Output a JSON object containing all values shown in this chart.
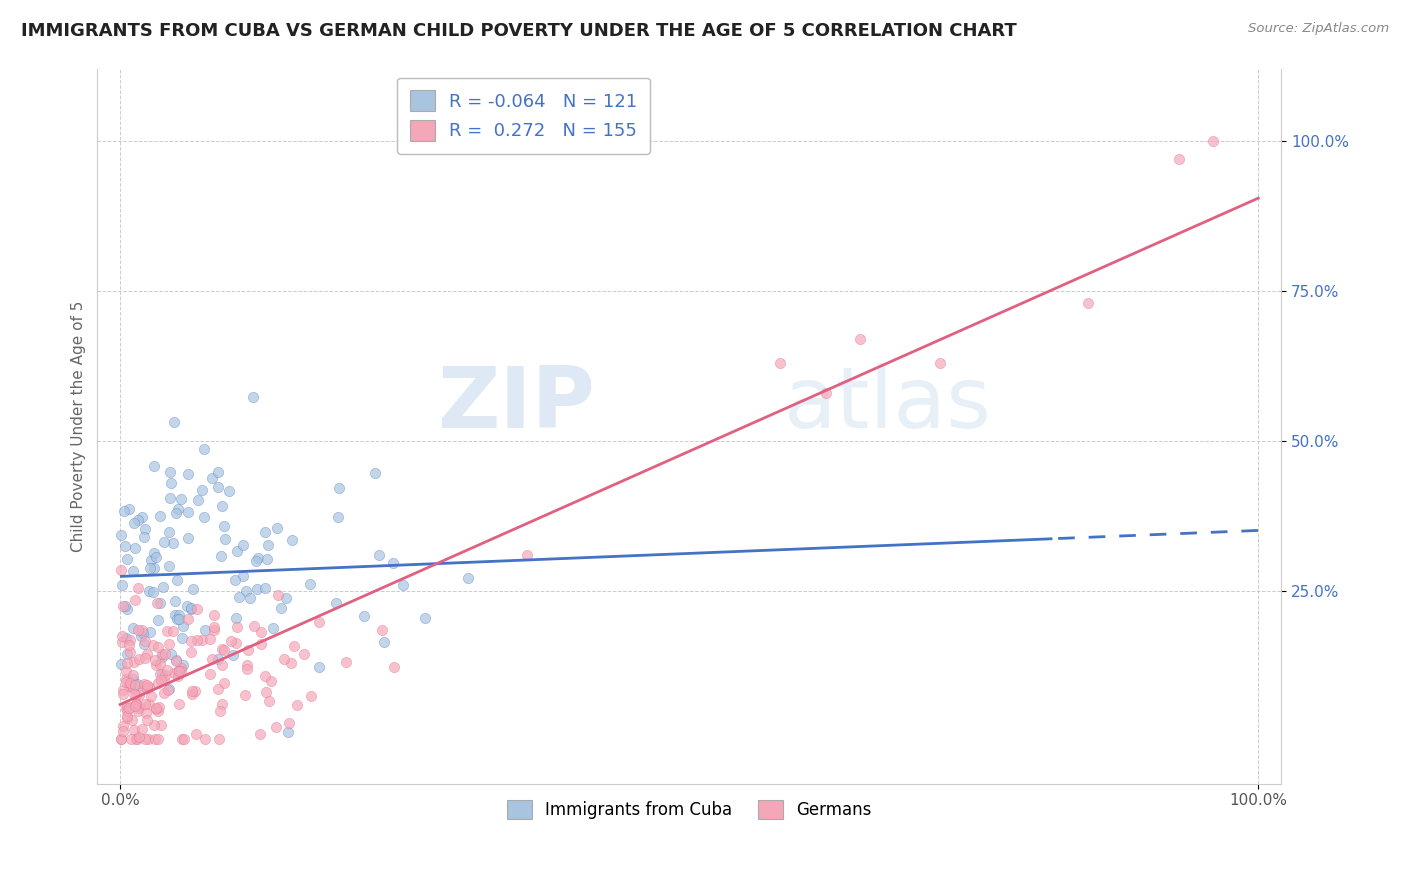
{
  "title": "IMMIGRANTS FROM CUBA VS GERMAN CHILD POVERTY UNDER THE AGE OF 5 CORRELATION CHART",
  "source": "Source: ZipAtlas.com",
  "ylabel": "Child Poverty Under the Age of 5",
  "cuba_R": -0.064,
  "cuba_N": 121,
  "german_R": 0.272,
  "german_N": 155,
  "cuba_color": "#a8c4e0",
  "german_color": "#f4a7b9",
  "cuba_line_color": "#4472c4",
  "german_line_color": "#e06080",
  "watermark_ZIP": "ZIP",
  "watermark_atlas": "atlas",
  "background_color": "#ffffff",
  "grid_color": "#cccccc",
  "ytick_color": "#4472c4",
  "title_fontsize": 13,
  "axis_label_fontsize": 11
}
